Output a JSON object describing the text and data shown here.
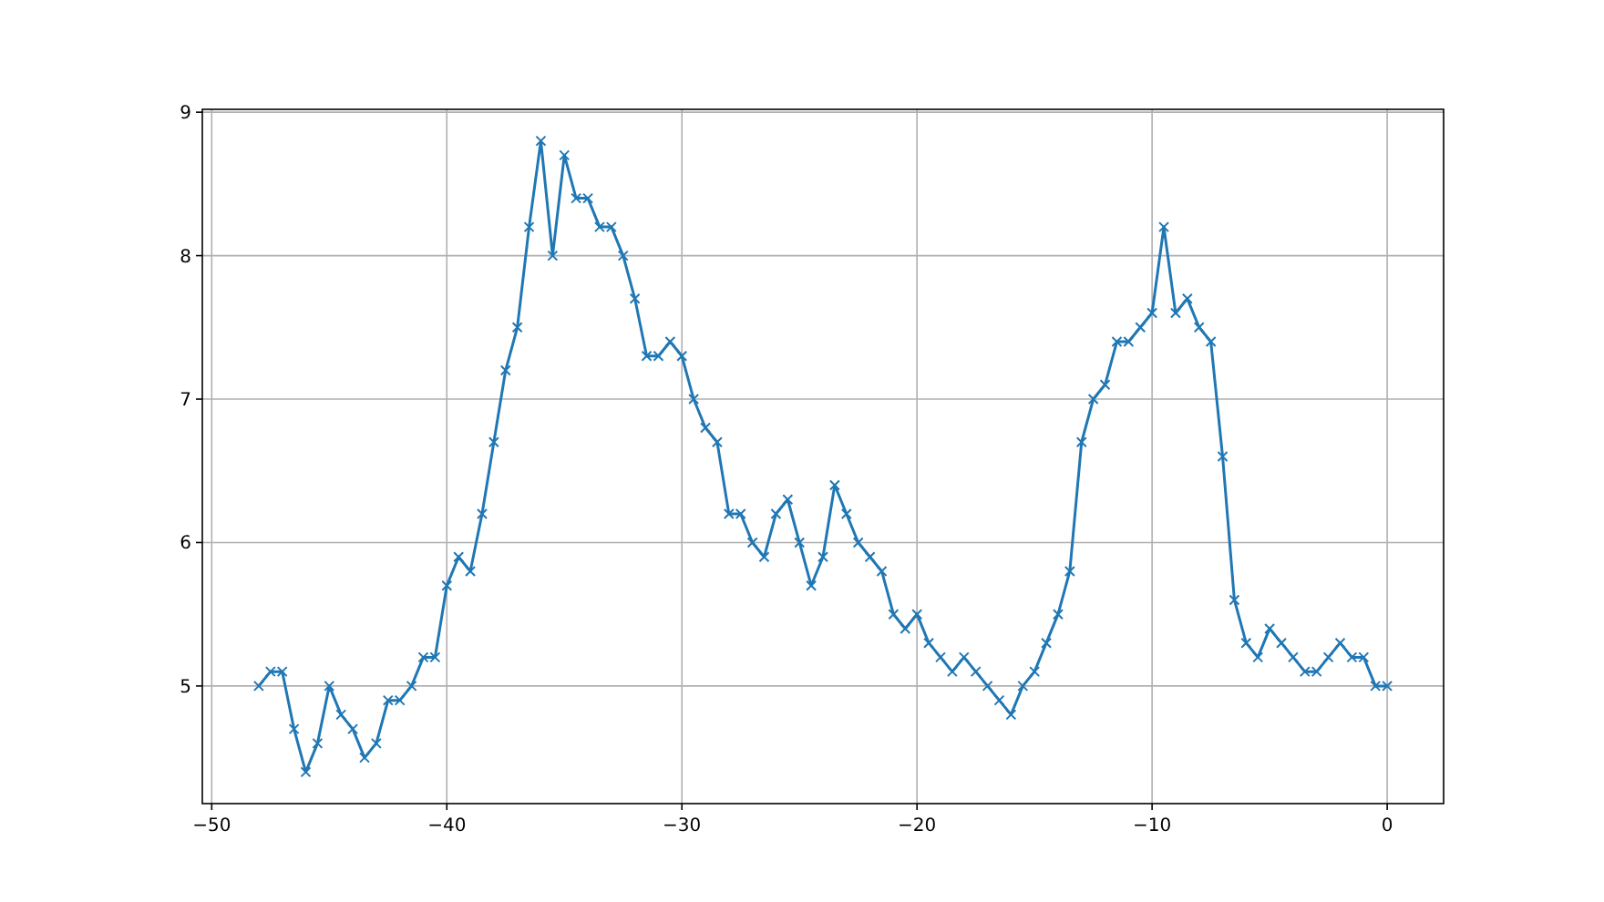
{
  "chart_data": {
    "type": "line",
    "marker": "cross",
    "grid": true,
    "line_style": "solid",
    "xlim": [
      -50.4,
      2.4
    ],
    "xticks": [
      -50,
      -40,
      -30,
      -20,
      -10,
      0
    ],
    "ylim": [
      4.18,
      9.02
    ],
    "yticks": [
      5,
      6,
      7,
      8,
      9
    ],
    "x": [
      -48,
      -47.5,
      -47,
      -46.5,
      -46,
      -45.5,
      -45,
      -44.5,
      -44,
      -43.5,
      -43,
      -42.5,
      -42,
      -41.5,
      -41,
      -40.5,
      -40,
      -39.5,
      -39,
      -38.5,
      -38,
      -37.5,
      -37,
      -36.5,
      -36,
      -35.5,
      -35,
      -34.5,
      -34,
      -33.5,
      -33,
      -32.5,
      -32,
      -31.5,
      -31,
      -30.5,
      -30,
      -29.5,
      -29,
      -28.5,
      -28,
      -27.5,
      -27,
      -26.5,
      -26,
      -25.5,
      -25,
      -24.5,
      -24,
      -23.5,
      -23,
      -22.5,
      -22,
      -21.5,
      -21,
      -20.5,
      -20,
      -19.5,
      -19,
      -18.5,
      -18,
      -17.5,
      -17,
      -16.5,
      -16,
      -15.5,
      -15,
      -14.5,
      -14,
      -13.5,
      -13,
      -12.5,
      -12,
      -11.5,
      -11,
      -10.5,
      -10,
      -9.5,
      -9,
      -8.5,
      -8,
      -7.5,
      -7,
      -6.5,
      -6,
      -5.5,
      -5,
      -4.5,
      -4,
      -3.5,
      -3,
      -2.5,
      -2,
      -1.5,
      -1,
      -0.5,
      0
    ],
    "series": [
      {
        "color": "#1f77b4",
        "values": [
          5.0,
          5.1,
          5.1,
          4.7,
          4.4,
          4.6,
          5.0,
          4.8,
          4.7,
          4.5,
          4.6,
          4.9,
          4.9,
          5.0,
          5.2,
          5.2,
          5.7,
          5.9,
          5.8,
          6.2,
          6.7,
          7.2,
          7.5,
          8.2,
          8.8,
          8.0,
          8.7,
          8.4,
          8.4,
          8.2,
          8.2,
          8.0,
          7.7,
          7.3,
          7.3,
          7.4,
          7.3,
          7.0,
          6.8,
          6.7,
          6.2,
          6.2,
          6.0,
          5.9,
          6.2,
          6.3,
          6.0,
          5.7,
          5.9,
          6.4,
          6.2,
          6.0,
          5.9,
          5.8,
          5.5,
          5.4,
          5.5,
          5.3,
          5.2,
          5.1,
          5.2,
          5.1,
          5.0,
          4.9,
          4.8,
          5.0,
          5.1,
          5.3,
          5.5,
          5.8,
          6.7,
          7.0,
          7.1,
          7.4,
          7.4,
          7.5,
          7.6,
          8.2,
          7.6,
          7.7,
          7.5,
          7.4,
          6.6,
          5.6,
          5.3,
          5.2,
          5.4,
          5.3,
          5.2,
          5.1,
          5.1,
          5.2,
          5.3,
          5.2,
          5.2,
          5.0,
          5.0
        ]
      }
    ]
  }
}
